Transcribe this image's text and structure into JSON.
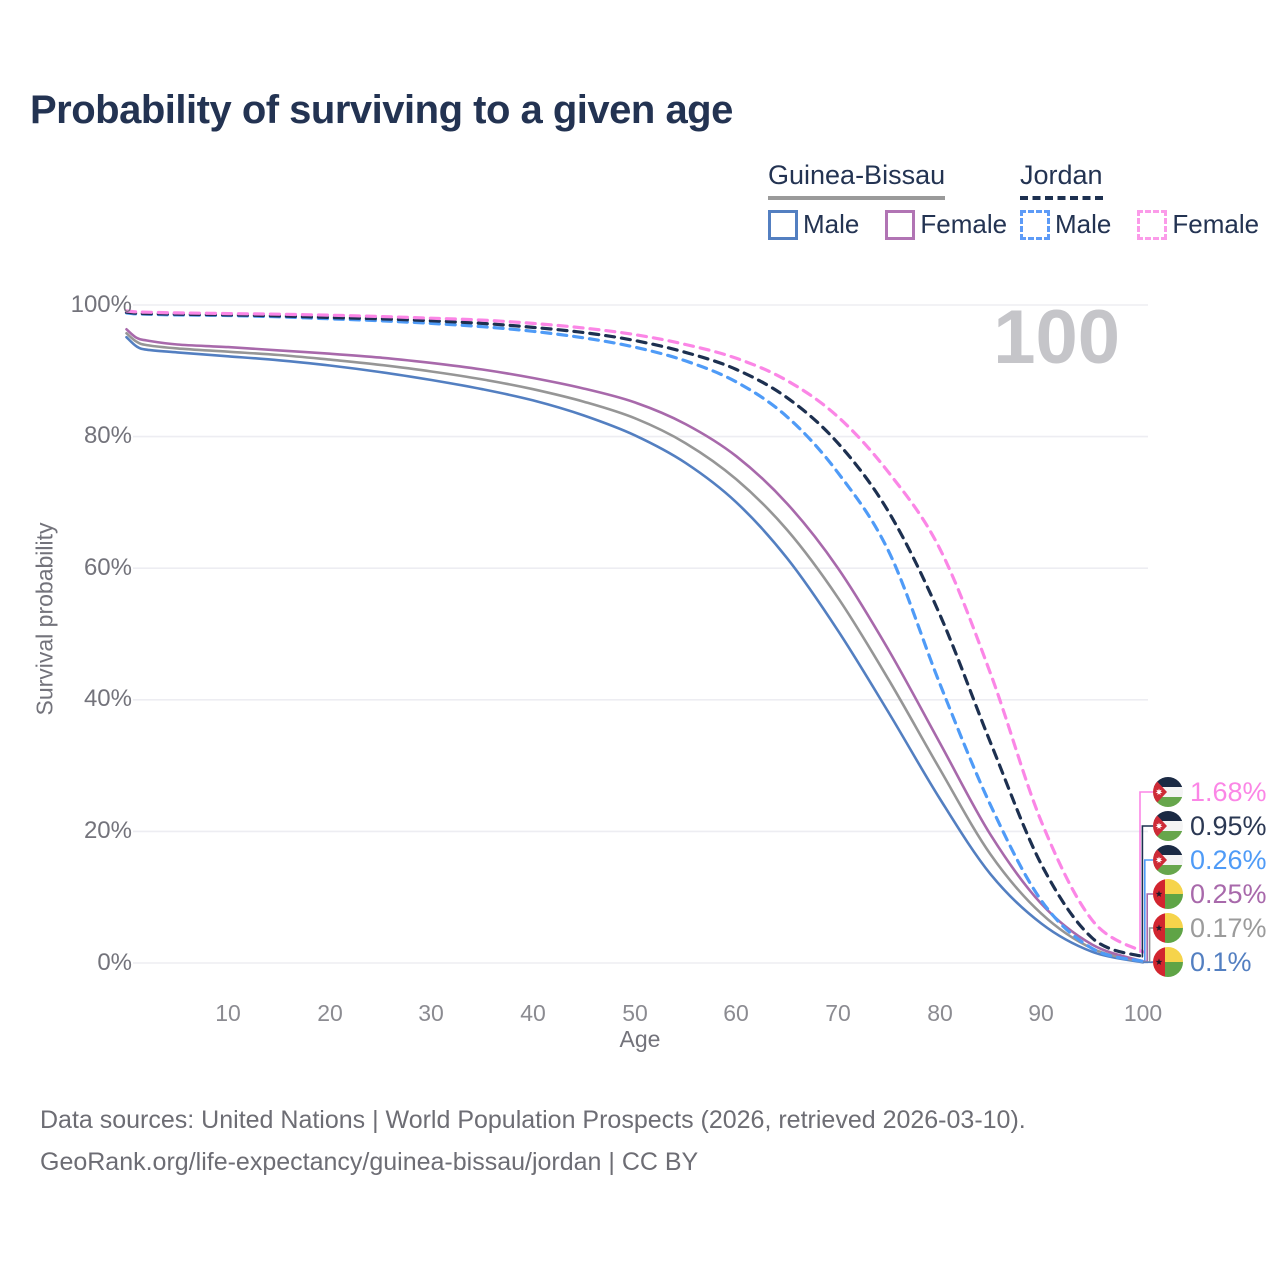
{
  "title": "Probability of surviving to a given age",
  "age_counter": "100",
  "legend": {
    "groups": [
      {
        "country": "Guinea-Bissau",
        "line_style": "solid",
        "items": [
          {
            "label": "Male",
            "color": "#537fc1"
          },
          {
            "label": "Female",
            "color": "#b174b4"
          }
        ]
      },
      {
        "country": "Jordan",
        "line_style": "dashed",
        "items": [
          {
            "label": "Male",
            "color": "#5d9bf7"
          },
          {
            "label": "Female",
            "color": "#fb9be9"
          }
        ]
      }
    ]
  },
  "chart_data": {
    "type": "line",
    "title": "Probability of surviving to a given age",
    "xlabel": "Age",
    "ylabel": "Survival probability",
    "xlim": [
      0,
      100
    ],
    "ylim": [
      0,
      100
    ],
    "grid": "horizontal-only",
    "x_ticks": [
      10,
      20,
      30,
      40,
      50,
      60,
      70,
      80,
      90,
      100
    ],
    "y_grid_values": [
      0,
      20,
      40,
      60,
      80,
      100
    ],
    "y_tick_labels": [
      "0%",
      "20%",
      "40%",
      "60%",
      "80%",
      "100%"
    ],
    "x": [
      0,
      1,
      2,
      5,
      10,
      15,
      20,
      25,
      30,
      35,
      40,
      45,
      50,
      55,
      60,
      65,
      70,
      75,
      80,
      85,
      90,
      95,
      100
    ],
    "series": [
      {
        "name": "Guinea-Bissau Male",
        "country": "Guinea-Bissau",
        "sex": "Male",
        "color": "#537fc1",
        "label_color": "#537fc1",
        "dashed": false,
        "flag": "guinea-bissau",
        "end_label": "0.1%",
        "values": [
          95.1,
          93.7,
          93.2,
          92.8,
          92.2,
          91.6,
          90.8,
          89.8,
          88.6,
          87.2,
          85.5,
          83.2,
          80.2,
          76.0,
          70.0,
          61.5,
          50.5,
          38.0,
          25.0,
          13.5,
          6.0,
          1.7,
          0.1
        ]
      },
      {
        "name": "Guinea-Bissau Both sexes",
        "country": "Guinea-Bissau",
        "sex": "Both",
        "color": "#969696",
        "label_color": "#9b9b9b",
        "dashed": false,
        "flag": "guinea-bissau",
        "end_label": "0.17%",
        "values": [
          95.7,
          94.4,
          93.9,
          93.4,
          92.9,
          92.4,
          91.7,
          90.9,
          89.9,
          88.7,
          87.2,
          85.3,
          82.8,
          79.0,
          73.5,
          65.8,
          55.5,
          43.0,
          29.5,
          16.5,
          7.5,
          2.2,
          0.17
        ]
      },
      {
        "name": "Guinea-Bissau Female",
        "country": "Guinea-Bissau",
        "sex": "Female",
        "color": "#a869ab",
        "label_color": "#a869ab",
        "dashed": false,
        "flag": "guinea-bissau",
        "end_label": "0.25%",
        "values": [
          96.3,
          95.0,
          94.6,
          94.0,
          93.6,
          93.1,
          92.6,
          92.0,
          91.2,
          90.2,
          88.9,
          87.3,
          85.2,
          81.9,
          77.0,
          69.8,
          60.0,
          47.5,
          33.5,
          19.5,
          9.0,
          2.8,
          0.25
        ]
      },
      {
        "name": "Jordan Male",
        "country": "Jordan",
        "sex": "Male",
        "color": "#4f9bf7",
        "label_color": "#4f9bf7",
        "dashed": true,
        "flag": "jordan",
        "end_label": "0.26%",
        "values": [
          98.8,
          98.65,
          98.6,
          98.5,
          98.4,
          98.2,
          97.9,
          97.6,
          97.2,
          96.7,
          96.0,
          95.0,
          93.6,
          91.5,
          88.3,
          83.0,
          74.5,
          62.5,
          42.5,
          24.0,
          9.5,
          2.2,
          0.26
        ]
      },
      {
        "name": "Jordan Both sexes",
        "country": "Jordan",
        "sex": "Both",
        "color": "#1d3050",
        "label_color": "#2b3853",
        "dashed": true,
        "flag": "jordan",
        "end_label": "0.95%",
        "values": [
          98.9,
          98.75,
          98.7,
          98.6,
          98.5,
          98.35,
          98.1,
          97.9,
          97.6,
          97.2,
          96.6,
          95.8,
          94.6,
          92.8,
          90.2,
          85.9,
          79.0,
          68.5,
          53.0,
          33.5,
          15.0,
          3.8,
          0.95
        ]
      },
      {
        "name": "Jordan Female",
        "country": "Jordan",
        "sex": "Female",
        "color": "#fb86e6",
        "label_color": "#fb86e6",
        "dashed": true,
        "flag": "jordan",
        "end_label": "1.68%",
        "values": [
          99.1,
          98.95,
          98.9,
          98.8,
          98.7,
          98.6,
          98.45,
          98.25,
          98.0,
          97.7,
          97.2,
          96.5,
          95.5,
          94.0,
          91.9,
          88.5,
          83.0,
          74.5,
          63.0,
          44.0,
          21.5,
          6.5,
          1.68
        ]
      }
    ]
  },
  "footer": {
    "line1": "Data sources: United Nations | World Population Prospects (2026, retrieved 2026-03-10).",
    "line2": "GeoRank.org/life-expectancy/guinea-bissau/jordan | CC BY"
  }
}
